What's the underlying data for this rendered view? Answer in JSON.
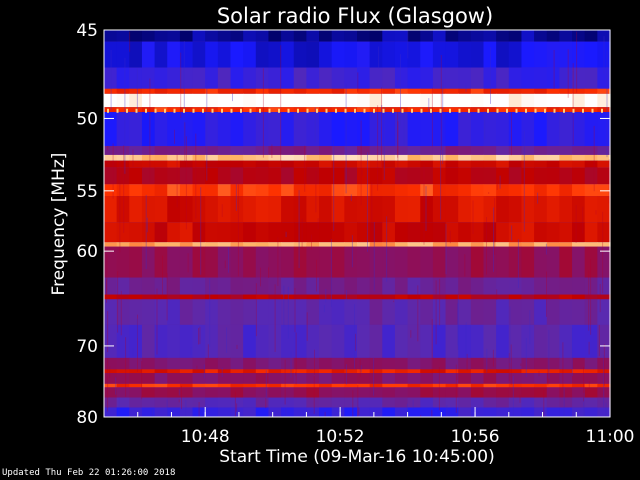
{
  "chart_data": {
    "type": "heatmap",
    "title": "Solar radio Flux (Glasgow)",
    "xlabel": "Start Time (09-Mar-16 10:45:00)",
    "ylabel": "Frequency [MHz]",
    "x_ticks": [
      "10:48",
      "10:52",
      "10:56",
      "11:00"
    ],
    "x_tick_minutes": [
      48,
      52,
      56,
      60
    ],
    "xlim_minutes": [
      45,
      60
    ],
    "y_ticks": [
      45,
      50,
      55,
      60,
      70,
      80
    ],
    "ylim": [
      45,
      80
    ],
    "colormap": [
      "#000060",
      "#1a1aff",
      "#5a2ab0",
      "#8a1060",
      "#c00000",
      "#ff3300",
      "#ffb060",
      "#ffffff"
    ],
    "bands": [
      {
        "from": 45.0,
        "to": 45.6,
        "level": 0.05
      },
      {
        "from": 45.6,
        "to": 47.0,
        "level": 0.12
      },
      {
        "from": 47.0,
        "to": 48.2,
        "level": 0.22
      },
      {
        "from": 48.2,
        "to": 48.5,
        "level": 0.7
      },
      {
        "from": 48.5,
        "to": 49.3,
        "level": 1.0
      },
      {
        "from": 49.3,
        "to": 49.6,
        "level": 0.7
      },
      {
        "from": 49.6,
        "to": 51.8,
        "level": 0.18
      },
      {
        "from": 51.8,
        "to": 52.4,
        "level": 0.35
      },
      {
        "from": 52.4,
        "to": 52.8,
        "level": 0.9
      },
      {
        "from": 52.8,
        "to": 53.3,
        "level": 0.6
      },
      {
        "from": 53.3,
        "to": 54.5,
        "level": 0.55
      },
      {
        "from": 54.5,
        "to": 55.4,
        "level": 0.72
      },
      {
        "from": 55.4,
        "to": 57.5,
        "level": 0.62
      },
      {
        "from": 57.5,
        "to": 59.2,
        "level": 0.6
      },
      {
        "from": 59.2,
        "to": 59.6,
        "level": 0.85
      },
      {
        "from": 59.6,
        "to": 62.5,
        "level": 0.45
      },
      {
        "from": 62.5,
        "to": 64.2,
        "level": 0.34
      },
      {
        "from": 64.2,
        "to": 64.7,
        "level": 0.55
      },
      {
        "from": 64.7,
        "to": 67.5,
        "level": 0.3
      },
      {
        "from": 67.5,
        "to": 71.5,
        "level": 0.27
      },
      {
        "from": 71.5,
        "to": 73.0,
        "level": 0.4
      },
      {
        "from": 73.0,
        "to": 73.5,
        "level": 0.65
      },
      {
        "from": 73.5,
        "to": 75.0,
        "level": 0.42
      },
      {
        "from": 75.0,
        "to": 75.5,
        "level": 0.7
      },
      {
        "from": 75.5,
        "to": 77.0,
        "level": 0.45
      },
      {
        "from": 77.0,
        "to": 78.5,
        "level": 0.3
      },
      {
        "from": 78.5,
        "to": 80.0,
        "level": 0.2
      }
    ],
    "grid": false
  },
  "footer": "Updated Thu Feb 22 01:26:00 2018"
}
